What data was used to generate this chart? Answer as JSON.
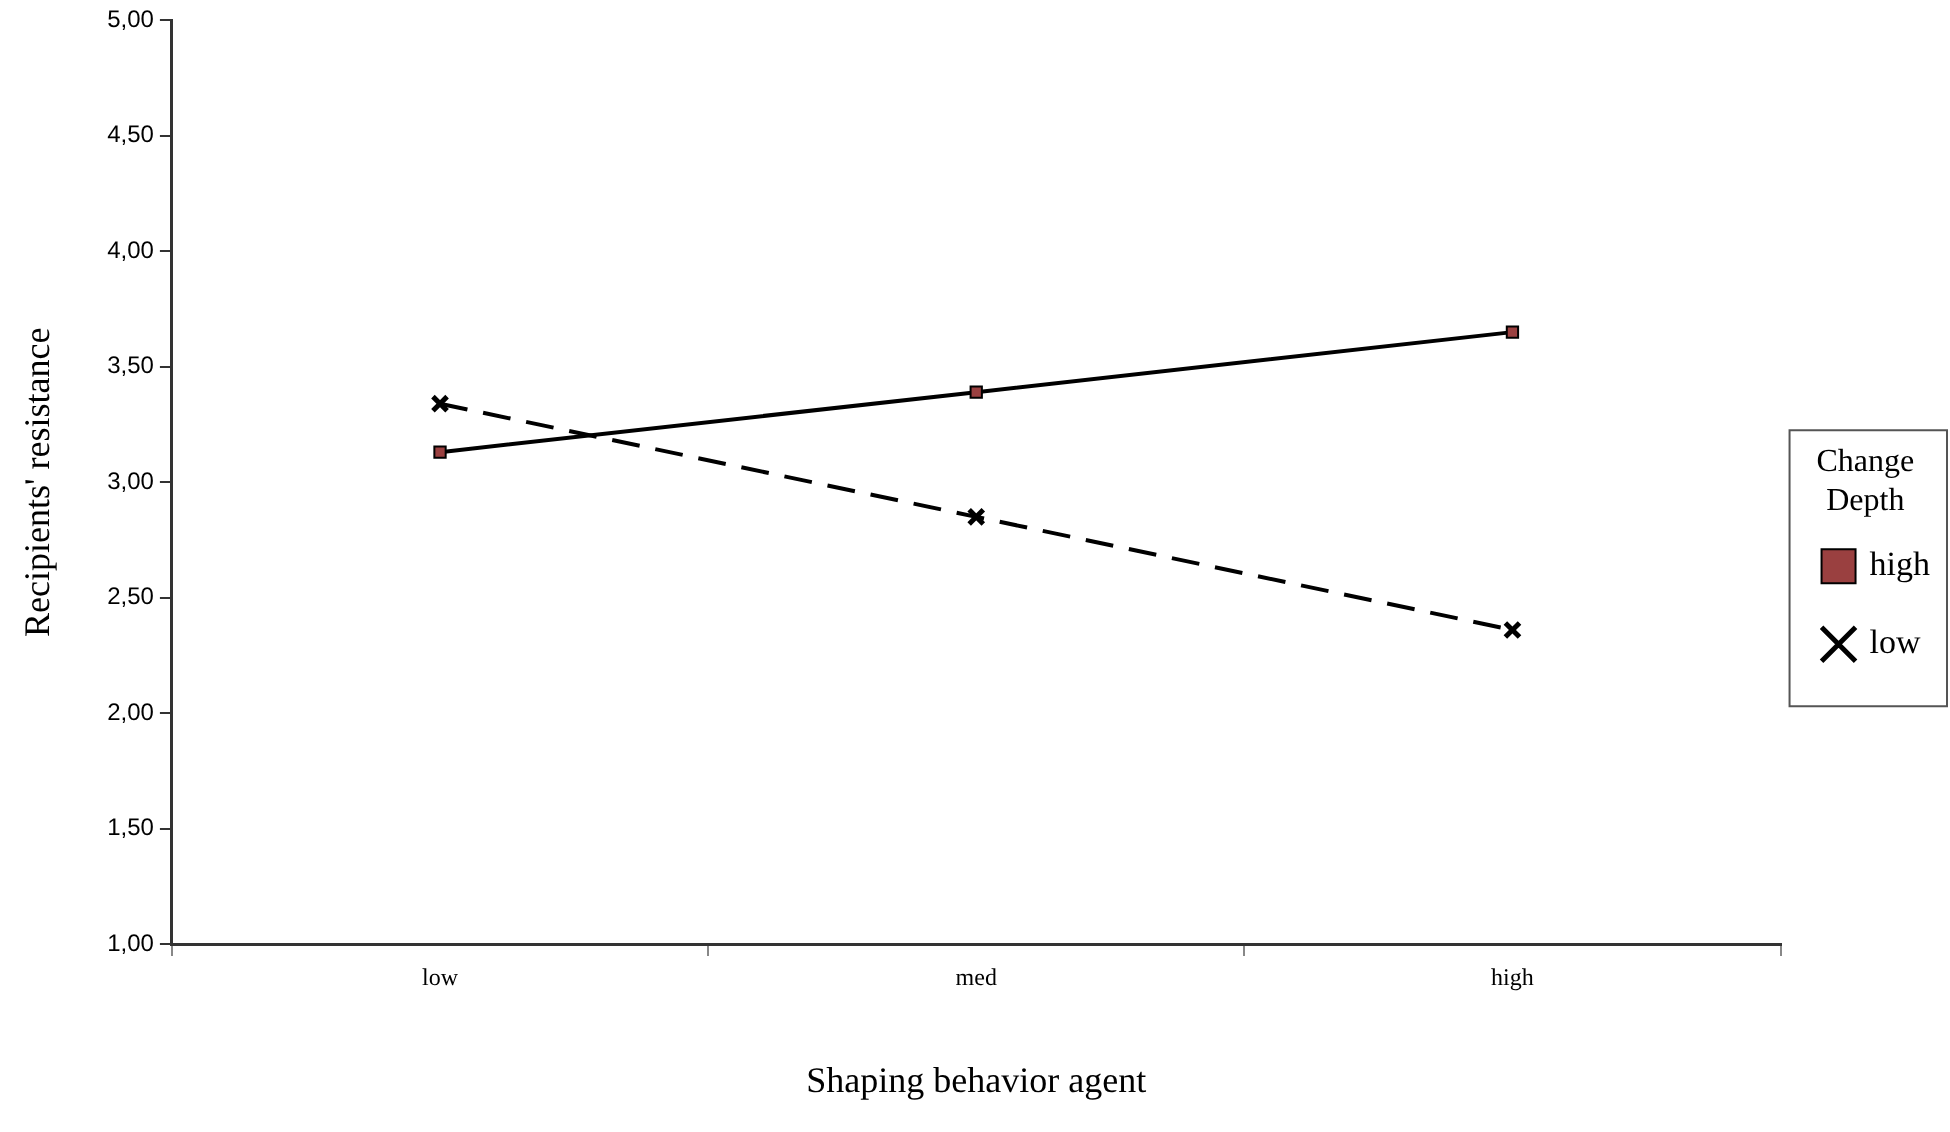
{
  "chart_data": {
    "type": "line",
    "xlabel": "Shaping behavior agent",
    "ylabel": "Recipients' resistance",
    "legend_title": "Change Depth",
    "categories": [
      "low",
      "med",
      "high"
    ],
    "series": [
      {
        "name": "high",
        "color": "#000000",
        "colors": [
          "#9a4040",
          "#9a4040",
          "#9a4040"
        ],
        "marker": "square",
        "line_style": "solid",
        "values": [
          3.13,
          3.39,
          3.65
        ]
      },
      {
        "name": "low",
        "color": "#000000",
        "marker": "cross",
        "line_style": "dashed",
        "values": [
          3.34,
          2.85,
          2.36
        ]
      }
    ],
    "ylim": [
      1,
      5
    ],
    "yticks": [
      {
        "value": 1,
        "label": "1,00"
      },
      {
        "value": 1.5,
        "label": "1,50"
      },
      {
        "value": 2,
        "label": "2,00"
      },
      {
        "value": 2.5,
        "label": "2,50"
      },
      {
        "value": 3,
        "label": "3,00"
      },
      {
        "value": 3.5,
        "label": "3,50"
      },
      {
        "value": 4,
        "label": "4,00"
      },
      {
        "value": 4.5,
        "label": "4,50"
      },
      {
        "value": 5,
        "label": "5,00"
      }
    ],
    "grid": false,
    "legend": "right"
  }
}
